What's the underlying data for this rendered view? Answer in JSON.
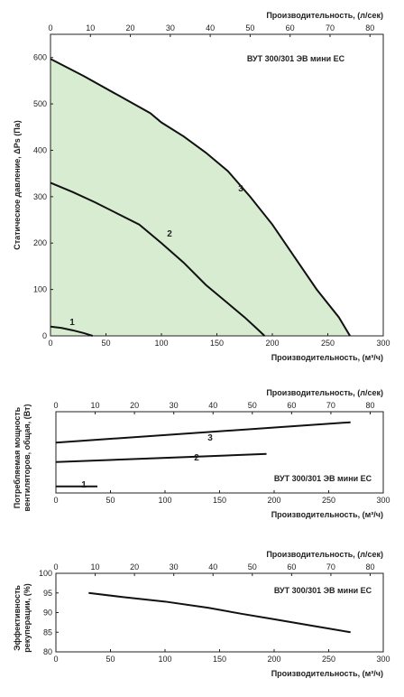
{
  "chart_data": [
    {
      "type": "area",
      "title": "ВУТ 300/301 ЭВ мини ЕС",
      "xlabel": "Производительность, (м³/ч)",
      "x2label": "Производительность, (л/сек)",
      "ylabel": "Статическое давление, ΔPs (Па)",
      "xlim": [
        0,
        300
      ],
      "x2lim": [
        0,
        83.33
      ],
      "ylim": [
        0,
        650
      ],
      "xticks": [
        "0",
        "50",
        "100",
        "150",
        "200",
        "250",
        "300"
      ],
      "x2ticks": [
        "0",
        "10",
        "20",
        "30",
        "40",
        "50",
        "60",
        "70",
        "80"
      ],
      "yticks": [
        "0",
        "100",
        "200",
        "300",
        "400",
        "500",
        "600"
      ],
      "fill_color": "#d7ecd0",
      "series": [
        {
          "name": "1",
          "x": [
            0,
            10,
            20,
            30,
            38
          ],
          "y": [
            20,
            17,
            12,
            6,
            0
          ]
        },
        {
          "name": "2",
          "x": [
            0,
            20,
            40,
            60,
            80,
            100,
            120,
            140,
            160,
            175,
            185,
            193
          ],
          "y": [
            330,
            310,
            288,
            264,
            240,
            200,
            158,
            110,
            70,
            40,
            18,
            0
          ]
        },
        {
          "name": "3",
          "x": [
            0,
            30,
            60,
            90,
            100,
            120,
            140,
            160,
            180,
            200,
            220,
            240,
            260,
            270
          ],
          "y": [
            597,
            560,
            520,
            480,
            460,
            430,
            395,
            355,
            300,
            240,
            170,
            100,
            40,
            0
          ]
        }
      ]
    },
    {
      "type": "line",
      "title": "ВУТ 300/301 ЭВ мини ЕС",
      "xlabel": "Производительность, (м³/ч)",
      "x2label": "Производительность, (л/сек)",
      "ylabel": "Потребляемая мощность вентиляторов, общая, (Вт)",
      "xlim": [
        0,
        300
      ],
      "x2lim": [
        0,
        83.33
      ],
      "xticks": [
        "0",
        "50",
        "100",
        "150",
        "200",
        "250",
        "300"
      ],
      "x2ticks": [
        "0",
        "10",
        "20",
        "30",
        "40",
        "50",
        "60",
        "70",
        "80"
      ],
      "series": [
        {
          "name": "1",
          "x": [
            0,
            38
          ],
          "y": [
            0.08,
            0.08
          ]
        },
        {
          "name": "2",
          "x": [
            0,
            193
          ],
          "y": [
            0.38,
            0.48
          ]
        },
        {
          "name": "3",
          "x": [
            0,
            270
          ],
          "y": [
            0.62,
            0.87
          ]
        }
      ]
    },
    {
      "type": "line",
      "title": "ВУТ 300/301 ЭВ мини ЕС",
      "xlabel": "Производительность, (м³/ч)",
      "x2label": "Производительность, (л/сек)",
      "ylabel": "Эффективность рекуперации, (%)",
      "xlim": [
        0,
        300
      ],
      "x2lim": [
        0,
        83.33
      ],
      "ylim": [
        80,
        100
      ],
      "xticks": [
        "0",
        "50",
        "100",
        "150",
        "200",
        "250",
        "300"
      ],
      "x2ticks": [
        "0",
        "10",
        "20",
        "30",
        "40",
        "50",
        "60",
        "70",
        "80"
      ],
      "yticks": [
        "80",
        "85",
        "90",
        "95",
        "100"
      ],
      "series": [
        {
          "x": [
            30,
            60,
            100,
            140,
            170,
            200,
            240,
            270
          ],
          "y": [
            95,
            94,
            92.8,
            91.2,
            89.7,
            88.3,
            86.4,
            85
          ]
        }
      ]
    }
  ]
}
